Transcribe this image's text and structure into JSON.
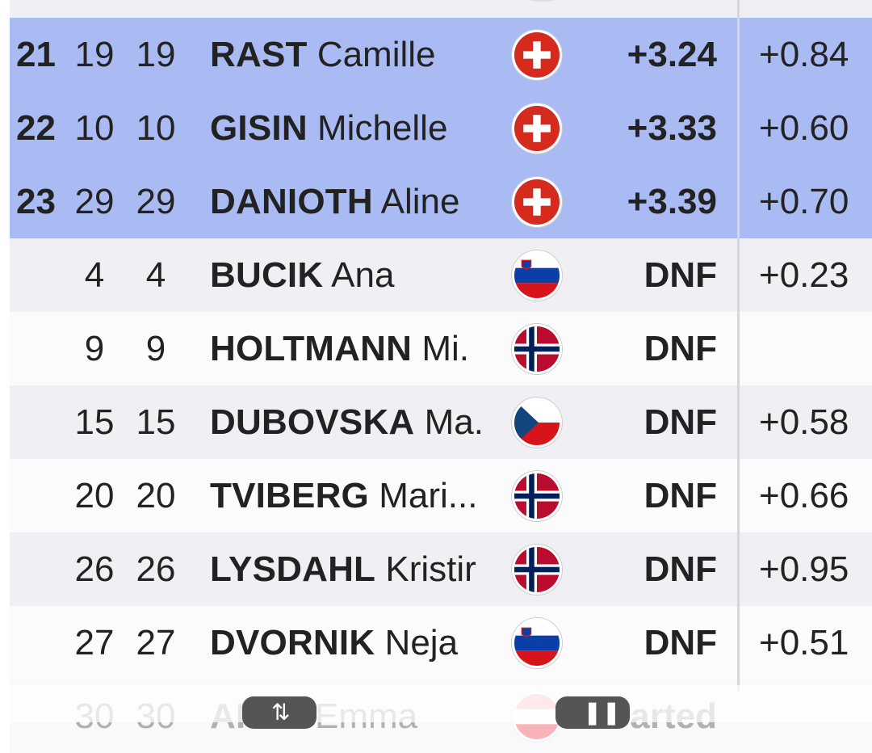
{
  "rows": [
    {
      "rank": "21",
      "bib": "19",
      "start": "19",
      "last": "RAST",
      "first": "Camille",
      "flag": "switzerland-flag",
      "time": "+3.24",
      "diff": "+0.84",
      "highlight": true
    },
    {
      "rank": "22",
      "bib": "10",
      "start": "10",
      "last": "GISIN",
      "first": "Michelle",
      "flag": "switzerland-flag",
      "time": "+3.33",
      "diff": "+0.60",
      "highlight": true
    },
    {
      "rank": "23",
      "bib": "29",
      "start": "29",
      "last": "DANIOTH",
      "first": "Aline",
      "flag": "switzerland-flag",
      "time": "+3.39",
      "diff": "+0.70",
      "highlight": true
    },
    {
      "rank": "",
      "bib": "4",
      "start": "4",
      "last": "BUCIK",
      "first": "Ana",
      "flag": "slovenia-flag",
      "time": "DNF",
      "diff": "+0.23",
      "highlight": false
    },
    {
      "rank": "",
      "bib": "9",
      "start": "9",
      "last": "HOLTMANN",
      "first": "Mi.",
      "flag": "norway-flag",
      "time": "DNF",
      "diff": "",
      "highlight": false
    },
    {
      "rank": "",
      "bib": "15",
      "start": "15",
      "last": "DUBOVSKA",
      "first": "Ma.",
      "flag": "czech-flag",
      "time": "DNF",
      "diff": "+0.58",
      "highlight": false
    },
    {
      "rank": "",
      "bib": "20",
      "start": "20",
      "last": "TVIBERG",
      "first": "Mari...",
      "flag": "norway-flag",
      "time": "DNF",
      "diff": "+0.66",
      "highlight": false
    },
    {
      "rank": "",
      "bib": "26",
      "start": "26",
      "last": "LYSDAHL",
      "first": "Kristir",
      "flag": "norway-flag",
      "time": "DNF",
      "diff": "+0.95",
      "highlight": false
    },
    {
      "rank": "",
      "bib": "27",
      "start": "27",
      "last": "DVORNIK",
      "first": "Neja",
      "flag": "slovenia-flag",
      "time": "DNF",
      "diff": "+0.51",
      "highlight": false
    },
    {
      "rank": "",
      "bib": "30",
      "start": "30",
      "last": "AI",
      "first": "ER Emma",
      "flag": "austria-flag",
      "time": "arted",
      "diff": "",
      "highlight": false
    }
  ],
  "colors": {
    "highlight_row": "#aabbf3",
    "alt_row": "#f0f0f4",
    "plain_row": "#fbfbfc"
  }
}
